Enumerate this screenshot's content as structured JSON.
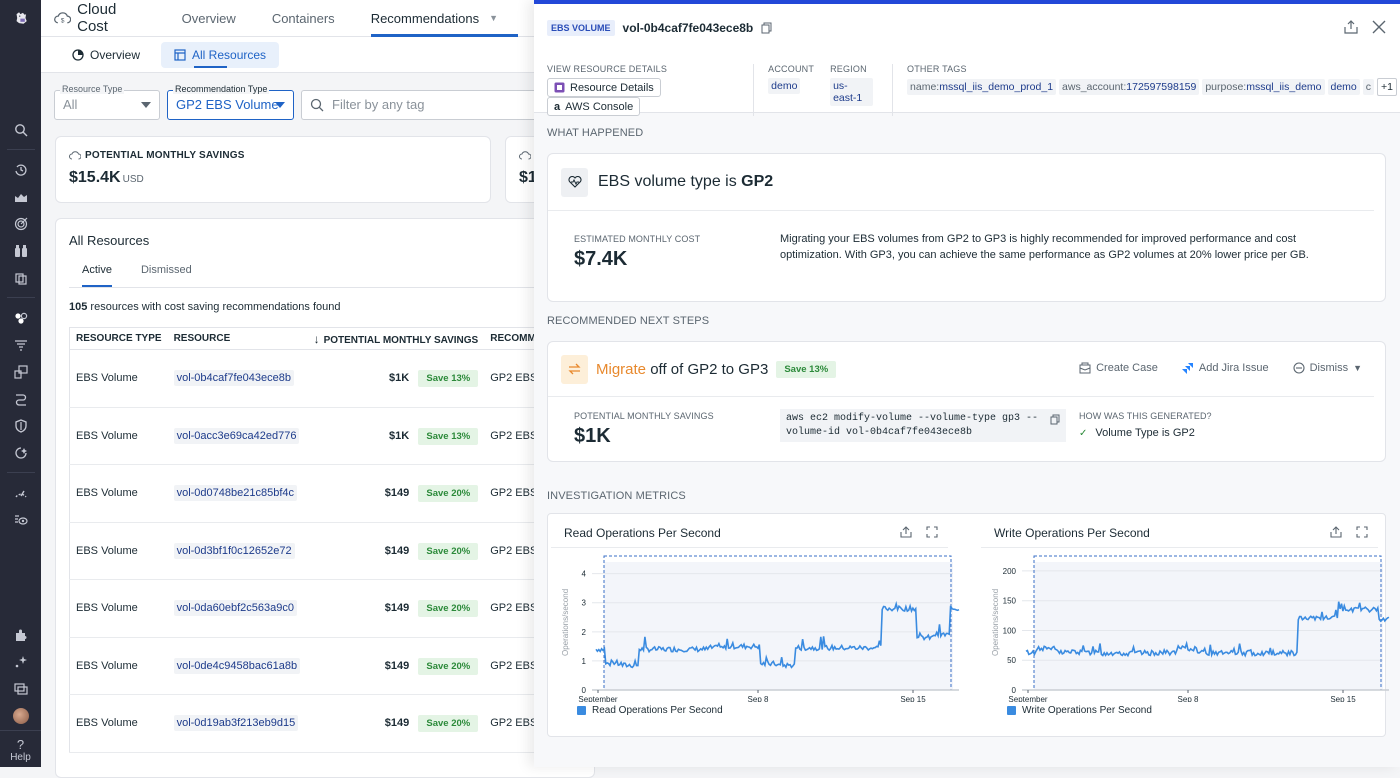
{
  "nav": {
    "items": [
      "search-icon",
      "history-icon",
      "chart-area-icon",
      "target-icon",
      "binoculars-icon",
      "cubes-icon",
      "hexagons-icon",
      "filter-list-icon",
      "layers-icon",
      "pipeline-icon",
      "shield-icon",
      "spark-icon",
      "gauge-icon",
      "eye-list-icon"
    ],
    "bottom": [
      "puzzle-icon",
      "sparkle-icon",
      "windows-icon"
    ],
    "help_label": "Help"
  },
  "topbar": {
    "title": "Cloud Cost",
    "tabs": [
      {
        "label": "Overview"
      },
      {
        "label": "Containers"
      },
      {
        "label": "Recommendations",
        "active": true
      }
    ]
  },
  "subbar": {
    "tabs": [
      {
        "label": "Overview"
      },
      {
        "label": "All Resources",
        "active": true
      }
    ]
  },
  "filters": {
    "resource_type": {
      "label": "Resource Type",
      "value": "All"
    },
    "recommendation_type": {
      "label": "Recommendation Type",
      "value": "GP2 EBS Volume"
    },
    "search_placeholder": "Filter by any tag"
  },
  "summary": {
    "caption": "POTENTIAL MONTHLY SAVINGS",
    "value": "$15.4K",
    "unit": "USD",
    "second_value_partial": "$1"
  },
  "resources": {
    "title": "All Resources",
    "tabs": [
      {
        "label": "Active",
        "active": true
      },
      {
        "label": "Dismissed"
      }
    ],
    "count": "105",
    "count_suffix": " resources with cost saving recommendations found",
    "columns": [
      "RESOURCE TYPE",
      "RESOURCE",
      "POTENTIAL MONTHLY SAVINGS",
      "RECOMMEN"
    ],
    "rows": [
      {
        "type": "EBS Volume",
        "id": "vol-0b4caf7fe043ece8b",
        "savings": "$1K",
        "pct": "Save 13%",
        "rec": "GP2 EBS V"
      },
      {
        "type": "EBS Volume",
        "id": "vol-0acc3e69ca42ed776",
        "savings": "$1K",
        "pct": "Save 13%",
        "rec": "GP2 EBS V"
      },
      {
        "type": "EBS Volume",
        "id": "vol-0d0748be21c85bf4c",
        "savings": "$149",
        "pct": "Save 20%",
        "rec": "GP2 EBS V"
      },
      {
        "type": "EBS Volume",
        "id": "vol-0d3bf1f0c12652e72",
        "savings": "$149",
        "pct": "Save 20%",
        "rec": "GP2 EBS V"
      },
      {
        "type": "EBS Volume",
        "id": "vol-0da60ebf2c563a9c0",
        "savings": "$149",
        "pct": "Save 20%",
        "rec": "GP2 EBS V"
      },
      {
        "type": "EBS Volume",
        "id": "vol-0de4c9458bac61a8b",
        "savings": "$149",
        "pct": "Save 20%",
        "rec": "GP2 EBS V"
      },
      {
        "type": "EBS Volume",
        "id": "vol-0d19ab3f213eb9d15",
        "savings": "$149",
        "pct": "Save 20%",
        "rec": "GP2 EBS V"
      }
    ]
  },
  "drawer": {
    "badge": "EBS VOLUME",
    "resource_id": "vol-0b4caf7fe043ece8b",
    "view_details_label": "VIEW RESOURCE DETAILS",
    "resource_details_btn": "Resource Details",
    "aws_console_btn": "AWS Console",
    "account_label": "ACCOUNT",
    "account": "demo",
    "region_label": "REGION",
    "region": "us-east-1",
    "other_tags_label": "OTHER TAGS",
    "tags": [
      {
        "k": "name:",
        "v": "mssql_iis_demo_prod_1"
      },
      {
        "k": "aws_account:",
        "v": "172597598159"
      },
      {
        "k": "purpose:",
        "v": "mssql_iis_demo"
      },
      {
        "k": "",
        "v": "demo"
      },
      {
        "k": "c",
        "v": ""
      }
    ],
    "more_tags": "+1",
    "what_happened": {
      "section": "WHAT HAPPENED",
      "title_prefix": "EBS volume type is ",
      "title_bold": "GP2",
      "cost_label": "ESTIMATED MONTHLY COST",
      "cost_value": "$7.4K",
      "description": "Migrating your EBS volumes from GP2 to GP3 is highly recommended for improved performance and cost optimization. With GP3, you can achieve the same performance as GP2 volumes at 20% lower price per GB."
    },
    "next_steps": {
      "section": "RECOMMENDED NEXT STEPS",
      "action": "Migrate",
      "title_rest": " off of GP2 to GP3",
      "badge": "Save 13%",
      "create_case": "Create Case",
      "add_jira": "Add Jira Issue",
      "dismiss": "Dismiss",
      "savings_label": "POTENTIAL MONTHLY SAVINGS",
      "savings_value": "$1K",
      "command": "aws ec2 modify-volume --volume-type gp3 --volume-id vol-0b4caf7fe043ece8b",
      "how_label": "HOW WAS THIS GENERATED?",
      "how_item": "Volume Type is GP2"
    },
    "metrics_section": "INVESTIGATION METRICS"
  },
  "colors": {
    "accent": "#1f63c6",
    "drawer_bar": "#2248d8",
    "migrate_orange": "#e8892d",
    "save_green": "#2c8a3a",
    "series_blue": "#3a8be0"
  },
  "chart_data": [
    {
      "type": "line",
      "title": "Read Operations Per Second",
      "ylabel": "Operations/second",
      "xlabel": "",
      "x_ticks": [
        "September",
        "Sep 8",
        "Sep 15"
      ],
      "y_ticks": [
        0,
        1,
        2,
        3,
        4
      ],
      "ylim": [
        0,
        4.4
      ],
      "legend": [
        "Read Operations Per Second"
      ],
      "series": [
        {
          "name": "Read Operations Per Second",
          "x": [
            "Aug 31",
            "Sep 1",
            "Sep 1.5",
            "Sep 2",
            "Sep 3",
            "Sep 4",
            "Sep 5",
            "Sep 6",
            "Sep 7",
            "Sep 7.5",
            "Sep 8",
            "Sep 8.5",
            "Sep 9",
            "Sep 10",
            "Sep 11",
            "Sep 12",
            "Sep 13",
            "Sep 13.5",
            "Sep 14",
            "Sep 15",
            "Sep 15.5",
            "Sep 16"
          ],
          "values": [
            1.4,
            0.9,
            0.85,
            1.4,
            1.4,
            1.4,
            1.4,
            1.45,
            1.5,
            1.5,
            0.9,
            0.85,
            1.45,
            1.45,
            1.45,
            1.45,
            1.45,
            2.8,
            2.8,
            1.8,
            1.9,
            2.8
          ]
        }
      ]
    },
    {
      "type": "line",
      "title": "Write Operations Per Second",
      "ylabel": "Operations/second",
      "xlabel": "",
      "x_ticks": [
        "September",
        "Sep 8",
        "Sep 15"
      ],
      "y_ticks": [
        0,
        50,
        100,
        150,
        200
      ],
      "ylim": [
        0,
        215
      ],
      "legend": [
        "Write Operations Per Second"
      ],
      "series": [
        {
          "name": "Write Operations Per Second",
          "x": [
            "Aug 31",
            "Sep 1",
            "Sep 2",
            "Sep 3",
            "Sep 4",
            "Sep 5",
            "Sep 6",
            "Sep 7",
            "Sep 8",
            "Sep 9",
            "Sep 10",
            "Sep 11",
            "Sep 12",
            "Sep 13",
            "Sep 13.5",
            "Sep 14",
            "Sep 15",
            "Sep 15.5",
            "Sep 16"
          ],
          "values": [
            63,
            70,
            64,
            63,
            62,
            62,
            62,
            63,
            70,
            62,
            62,
            62,
            62,
            62,
            120,
            120,
            135,
            135,
            120
          ]
        }
      ]
    }
  ]
}
